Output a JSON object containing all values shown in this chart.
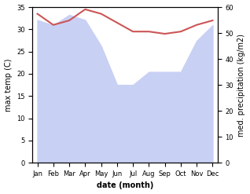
{
  "months": [
    "Jan",
    "Feb",
    "Mar",
    "Apr",
    "May",
    "Jun",
    "Jul",
    "Aug",
    "Sep",
    "Oct",
    "Nov",
    "Dec"
  ],
  "max_temp": [
    33.5,
    31.0,
    32.0,
    34.5,
    33.5,
    31.5,
    29.5,
    29.5,
    29.0,
    29.5,
    31.0,
    32.0
  ],
  "precipitation": [
    55,
    53,
    57,
    55,
    45,
    30,
    30,
    35,
    35,
    35,
    47,
    53
  ],
  "temp_color": "#cc5555",
  "precip_fill_color": "#c8d0f4",
  "ylabel_left": "max temp (C)",
  "ylabel_right": "med. precipitation (kg/m2)",
  "xlabel": "date (month)",
  "ylim_left": [
    0,
    35
  ],
  "ylim_right": [
    0,
    60
  ],
  "yticks_left": [
    0,
    5,
    10,
    15,
    20,
    25,
    30,
    35
  ],
  "yticks_right": [
    0,
    10,
    20,
    30,
    40,
    50,
    60
  ],
  "tick_fontsize": 6,
  "label_fontsize": 7
}
